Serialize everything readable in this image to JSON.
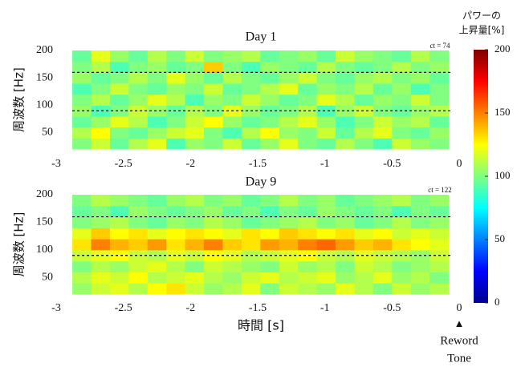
{
  "chart_data": [
    {
      "type": "heatmap",
      "title": "Day 1",
      "annotation": "ct = 74",
      "ylabel": "周波数 [Hz]",
      "x": [
        -2.88,
        -2.74,
        -2.6,
        -2.46,
        -2.32,
        -2.18,
        -2.04,
        -1.9,
        -1.76,
        -1.62,
        -1.48,
        -1.34,
        -1.2,
        -1.06,
        -0.92,
        -0.78,
        -0.64,
        -0.5,
        -0.36,
        -0.22,
        -0.08
      ],
      "y": [
        20,
        40,
        60,
        80,
        100,
        120,
        140,
        160,
        180,
        200
      ],
      "values": [
        [
          100,
          115,
          95,
          110,
          120,
          90,
          105,
          100,
          115,
          95,
          105,
          120,
          100,
          95,
          110,
          100,
          90,
          115,
          105,
          100
        ],
        [
          110,
          125,
          100,
          95,
          105,
          115,
          120,
          100,
          90,
          110,
          125,
          105,
          100,
          115,
          95,
          110,
          120,
          100,
          95,
          105
        ],
        [
          95,
          105,
          120,
          110,
          90,
          100,
          115,
          125,
          105,
          95,
          100,
          110,
          120,
          105,
          90,
          100,
          115,
          105,
          110,
          95
        ],
        [
          105,
          90,
          100,
          115,
          105,
          95,
          110,
          100,
          120,
          105,
          95,
          100,
          110,
          90,
          105,
          115,
          100,
          95,
          105,
          110
        ],
        [
          100,
          110,
          95,
          105,
          120,
          110,
          90,
          105,
          100,
          115,
          105,
          95,
          100,
          120,
          110,
          95,
          105,
          100,
          115,
          100
        ],
        [
          90,
          100,
          115,
          100,
          95,
          105,
          100,
          115,
          95,
          100,
          110,
          120,
          95,
          105,
          100,
          110,
          95,
          105,
          90,
          100
        ],
        [
          105,
          95,
          100,
          110,
          100,
          120,
          105,
          95,
          110,
          100,
          95,
          105,
          115,
          100,
          95,
          105,
          110,
          100,
          105,
          95
        ],
        [
          100,
          110,
          90,
          100,
          105,
          95,
          100,
          135,
          100,
          90,
          105,
          100,
          95,
          110,
          100,
          95,
          100,
          110,
          100,
          105
        ],
        [
          95,
          120,
          105,
          95,
          110,
          100,
          115,
          100,
          105,
          110,
          95,
          100,
          105,
          95,
          115,
          105,
          100,
          95,
          110,
          100
        ]
      ],
      "hlines": [
        160,
        90
      ],
      "xlim": [
        -3,
        0
      ],
      "xticks": [
        -3,
        -2.5,
        -2,
        -1.5,
        -1,
        -0.5,
        0
      ],
      "ylim": [
        20,
        200
      ],
      "yticks": [
        50,
        100,
        150,
        200
      ]
    },
    {
      "type": "heatmap",
      "title": "Day 9",
      "annotation": "ct = 122",
      "ylabel": "周波数 [Hz]",
      "xlabel": "時間 [s]",
      "x": [
        -2.88,
        -2.74,
        -2.6,
        -2.46,
        -2.32,
        -2.18,
        -2.04,
        -1.9,
        -1.76,
        -1.62,
        -1.48,
        -1.34,
        -1.2,
        -1.06,
        -0.92,
        -0.78,
        -0.64,
        -0.5,
        -0.36,
        -0.22,
        -0.08
      ],
      "y": [
        20,
        40,
        60,
        80,
        100,
        120,
        140,
        160,
        180,
        200
      ],
      "values": [
        [
          105,
          115,
          120,
          110,
          125,
          130,
          115,
          105,
          110,
          120,
          100,
          115,
          110,
          105,
          120,
          110,
          100,
          115,
          105,
          110
        ],
        [
          110,
          120,
          115,
          125,
          110,
          115,
          120,
          110,
          105,
          115,
          120,
          110,
          115,
          120,
          105,
          110,
          120,
          105,
          110,
          100
        ],
        [
          100,
          110,
          105,
          115,
          120,
          110,
          100,
          115,
          110,
          105,
          100,
          115,
          105,
          110,
          100,
          115,
          110,
          100,
          105,
          110
        ],
        [
          115,
          120,
          125,
          115,
          110,
          120,
          115,
          125,
          120,
          110,
          115,
          120,
          125,
          115,
          110,
          120,
          115,
          110,
          105,
          115
        ],
        [
          130,
          150,
          140,
          135,
          145,
          130,
          140,
          150,
          135,
          130,
          145,
          140,
          150,
          155,
          145,
          135,
          140,
          130,
          125,
          120
        ],
        [
          120,
          135,
          125,
          130,
          120,
          125,
          130,
          125,
          120,
          130,
          125,
          135,
          130,
          125,
          130,
          120,
          125,
          115,
          120,
          115
        ],
        [
          100,
          105,
          110,
          100,
          95,
          105,
          100,
          110,
          105,
          95,
          100,
          105,
          110,
          100,
          105,
          95,
          100,
          110,
          100,
          105
        ],
        [
          95,
          100,
          90,
          105,
          100,
          95,
          100,
          105,
          95,
          100,
          90,
          100,
          95,
          105,
          100,
          95,
          100,
          90,
          100,
          95
        ],
        [
          100,
          110,
          105,
          100,
          95,
          105,
          110,
          100,
          105,
          95,
          100,
          110,
          100,
          105,
          95,
          100,
          105,
          110,
          100,
          105
        ]
      ],
      "hlines": [
        160,
        90
      ],
      "xlim": [
        -3,
        0
      ],
      "xticks": [
        -3,
        -2.5,
        -2,
        -1.5,
        -1,
        -0.5,
        0
      ],
      "ylim": [
        20,
        200
      ],
      "yticks": [
        50,
        100,
        150,
        200
      ]
    }
  ],
  "colorbar": {
    "title": [
      "パワーの",
      "上昇量[%]"
    ],
    "lim": [
      0,
      200
    ],
    "ticks": [
      0,
      50,
      100,
      150,
      200
    ],
    "colormap": "jet"
  },
  "marker": {
    "symbol": "▲",
    "label": [
      "Reword",
      "Tone"
    ]
  }
}
